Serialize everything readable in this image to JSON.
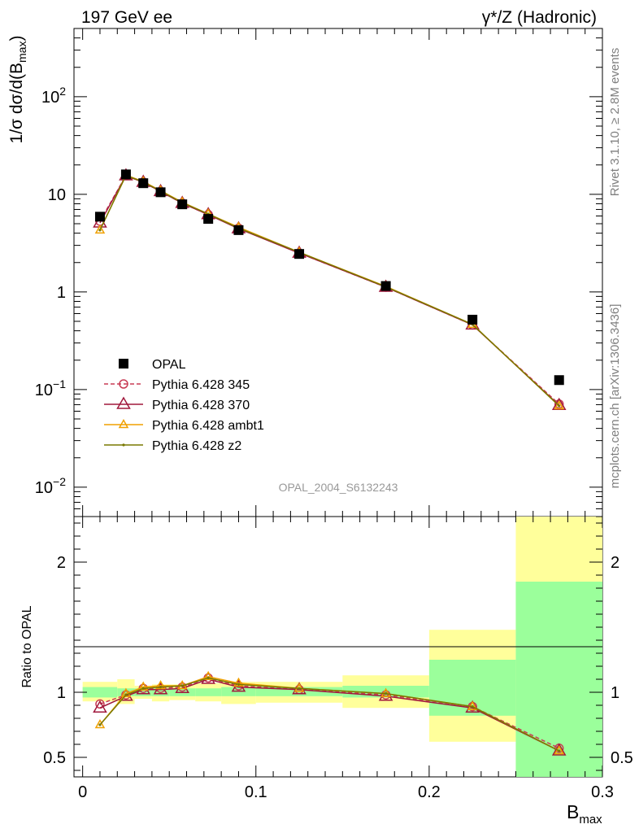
{
  "header": {
    "left": "197 GeV ee",
    "right": "γ*/Z (Hadronic)"
  },
  "side_text": {
    "top": "Rivet 3.1.10, ≥ 2.8M events",
    "bottom": "mcplots.cern.ch [arXiv:1306.3436]"
  },
  "analysis_id": "OPAL_2004_S6132243",
  "colors": {
    "opal": "#000000",
    "p345": "#c83c55",
    "p370": "#a0183c",
    "ambt1": "#f0a000",
    "z2": "#787800",
    "band_inner": "#9bff9b",
    "band_outer": "#ffff9b"
  },
  "chart_data": [
    {
      "type": "line",
      "panel": "main",
      "ylabel": "1/σ dσ/d(B_max)",
      "yscale": "log",
      "ylim": [
        0.005,
        500
      ],
      "xlim": [
        -0.005,
        0.3
      ],
      "y_ticks": [
        "10^-2",
        "10^-1",
        "1",
        "10",
        "10^2"
      ],
      "x": [
        0.01,
        0.025,
        0.035,
        0.045,
        0.0575,
        0.0725,
        0.09,
        0.125,
        0.175,
        0.225,
        0.275
      ],
      "x_edges": [
        0,
        0.02,
        0.03,
        0.04,
        0.05,
        0.065,
        0.08,
        0.1,
        0.15,
        0.2,
        0.25,
        0.3
      ],
      "series": [
        {
          "name": "OPAL",
          "marker": "square",
          "values": [
            5.9,
            16.0,
            13.0,
            10.5,
            7.9,
            5.6,
            4.3,
            2.45,
            1.15,
            0.52,
            0.125
          ]
        },
        {
          "name": "Pythia 6.428 345",
          "marker": "circle",
          "dashed": true,
          "values": [
            5.3,
            15.6,
            13.3,
            10.7,
            8.1,
            6.2,
            4.5,
            2.5,
            1.12,
            0.46,
            0.071
          ]
        },
        {
          "name": "Pythia 6.428 370",
          "marker": "triangle",
          "values": [
            5.1,
            15.5,
            13.3,
            10.7,
            8.1,
            6.2,
            4.45,
            2.5,
            1.12,
            0.46,
            0.069
          ]
        },
        {
          "name": "Pythia 6.428 ambt1",
          "marker": "triangle-small",
          "values": [
            4.3,
            15.7,
            13.5,
            10.9,
            8.3,
            6.3,
            4.6,
            2.55,
            1.14,
            0.465,
            0.068
          ]
        },
        {
          "name": "Pythia 6.428 z2",
          "marker": "dot",
          "values": [
            4.3,
            15.6,
            13.4,
            10.8,
            8.2,
            6.3,
            4.5,
            2.55,
            1.13,
            0.465,
            0.068
          ]
        }
      ]
    },
    {
      "type": "line",
      "panel": "ratio",
      "xlabel": "B_max",
      "ylabel": "Ratio to OPAL",
      "ylim": [
        0.35,
        2.35
      ],
      "x_ticks": [
        "0",
        "0.1",
        "0.2",
        "0.3"
      ],
      "y_ticks": [
        "0.5",
        "1",
        "2"
      ],
      "bands": {
        "inner": [
          [
            0.96,
            1.04
          ],
          [
            0.97,
            1.03
          ],
          [
            0.97,
            1.03
          ],
          [
            0.97,
            1.03
          ],
          [
            0.97,
            1.03
          ],
          [
            0.97,
            1.03
          ],
          [
            0.97,
            1.04
          ],
          [
            0.97,
            1.04
          ],
          [
            0.96,
            1.05
          ],
          [
            0.82,
            1.25
          ],
          [
            0.35,
            1.85
          ]
        ],
        "outer": [
          [
            0.93,
            1.08
          ],
          [
            0.91,
            1.1
          ],
          [
            0.95,
            1.05
          ],
          [
            0.93,
            1.06
          ],
          [
            0.94,
            1.06
          ],
          [
            0.93,
            1.07
          ],
          [
            0.91,
            1.08
          ],
          [
            0.92,
            1.08
          ],
          [
            0.88,
            1.13
          ],
          [
            0.62,
            1.48
          ],
          [
            0.35,
            2.35
          ]
        ]
      },
      "series": [
        {
          "name": "Pythia 6.428 345",
          "values": [
            0.91,
            0.98,
            1.03,
            1.03,
            1.04,
            1.11,
            1.05,
            1.02,
            0.98,
            0.89,
            0.57
          ]
        },
        {
          "name": "Pythia 6.428 370",
          "values": [
            0.88,
            0.97,
            1.02,
            1.02,
            1.03,
            1.1,
            1.04,
            1.02,
            0.97,
            0.88,
            0.55
          ]
        },
        {
          "name": "Pythia 6.428 ambt1",
          "values": [
            0.75,
            0.99,
            1.04,
            1.05,
            1.05,
            1.12,
            1.07,
            1.03,
            0.99,
            0.89,
            0.55
          ]
        },
        {
          "name": "Pythia 6.428 z2",
          "values": [
            0.75,
            0.98,
            1.03,
            1.04,
            1.05,
            1.11,
            1.06,
            1.03,
            0.99,
            0.89,
            0.55
          ]
        }
      ]
    }
  ]
}
